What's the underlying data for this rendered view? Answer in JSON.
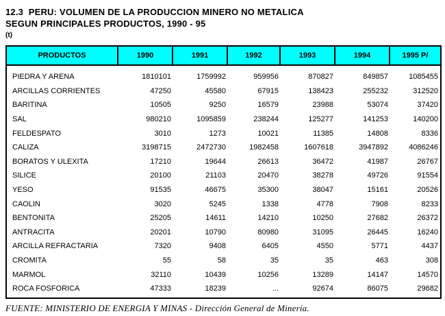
{
  "page": {
    "title_line1": "12.3  PERU: VOLUMEN DE LA PRODUCCION MINERO NO METALICA",
    "title_line2": "SEGUN PRINCIPALES PRODUCTOS, 1990 - 95",
    "unit_label": "(t)",
    "source_note": "FUENTE: MINISTERIO DE ENERGIA Y MINAS - Dirección General de Minería."
  },
  "colors": {
    "header_bg": "#00ffff",
    "border": "#000000",
    "text": "#000000",
    "page_bg": "#ffffff"
  },
  "table": {
    "columns": [
      "PRODUCTOS",
      "1990",
      "1991",
      "1992",
      "1993",
      "1994",
      "1995 P/"
    ],
    "rows": [
      {
        "product": "PIEDRA Y ARENA",
        "values": [
          "1810101",
          "1759992",
          "959956",
          "870827",
          "849857",
          "1085455"
        ]
      },
      {
        "product": "ARCILLAS CORRIENTES",
        "values": [
          "47250",
          "45580",
          "67915",
          "138423",
          "255232",
          "312520"
        ]
      },
      {
        "product": "BARITINA",
        "values": [
          "10505",
          "9250",
          "16579",
          "23988",
          "53074",
          "37420"
        ]
      },
      {
        "product": "SAL",
        "values": [
          "980210",
          "1095859",
          "238244",
          "125277",
          "141253",
          "140200"
        ]
      },
      {
        "product": "FELDESPATO",
        "values": [
          "3010",
          "1273",
          "10021",
          "11385",
          "14808",
          "8336"
        ]
      },
      {
        "product": "CALIZA",
        "values": [
          "3198715",
          "2472730",
          "1982458",
          "1607618",
          "3947892",
          "4086246"
        ]
      },
      {
        "product": "BORATOS Y ULEXITA",
        "values": [
          "17210",
          "19644",
          "26613",
          "36472",
          "41987",
          "26767"
        ]
      },
      {
        "product": "SILICE",
        "values": [
          "20100",
          "21103",
          "20470",
          "38278",
          "49726",
          "91554"
        ]
      },
      {
        "product": "YESO",
        "values": [
          "91535",
          "46675",
          "35300",
          "38047",
          "15161",
          "20526"
        ]
      },
      {
        "product": "CAOLIN",
        "values": [
          "3020",
          "5245",
          "1338",
          "4778",
          "7908",
          "8233"
        ]
      },
      {
        "product": "BENTONITA",
        "values": [
          "25205",
          "14611",
          "14210",
          "10250",
          "27682",
          "26372"
        ]
      },
      {
        "product": "ANTRACITA",
        "values": [
          "20201",
          "10790",
          "80980",
          "31095",
          "26445",
          "16240"
        ]
      },
      {
        "product": "ARCILLA REFRACTARIA",
        "values": [
          "7320",
          "9408",
          "6405",
          "4550",
          "5771",
          "4437"
        ]
      },
      {
        "product": "CROMITA",
        "values": [
          "55",
          "58",
          "35",
          "35",
          "463",
          "308"
        ]
      },
      {
        "product": "MARMOL",
        "values": [
          "32110",
          "10439",
          "10256",
          "13289",
          "14147",
          "14570"
        ]
      },
      {
        "product": "ROCA FOSFORICA",
        "values": [
          "47333",
          "18239",
          "...",
          "92674",
          "86075",
          "29682"
        ]
      }
    ]
  }
}
